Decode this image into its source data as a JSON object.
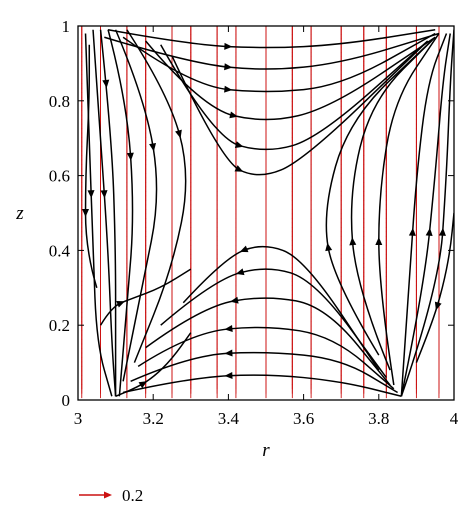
{
  "chart_data": {
    "type": "vector-field-streamlines",
    "title": "",
    "xlabel": "r",
    "ylabel": "z",
    "xlim": [
      3,
      4
    ],
    "ylim": [
      0,
      1
    ],
    "x_ticks": [
      "3",
      "3.2",
      "3.4",
      "3.6",
      "3.8",
      "4"
    ],
    "x_tick_values": [
      3,
      3.2,
      3.4,
      3.6,
      3.8,
      4
    ],
    "y_ticks": [
      "0",
      "0.2",
      "0.4",
      "0.6",
      "0.8",
      "1"
    ],
    "y_tick_values": [
      0,
      0.2,
      0.4,
      0.6,
      0.8,
      1
    ],
    "grid": false,
    "legend": {
      "placement": "bottom-left",
      "reference_vector_label": "0.2",
      "reference_vector_magnitude": 0.2
    },
    "colors": {
      "vectors": "#cc1111",
      "streamlines": "#000000"
    },
    "vector_columns_r": [
      3.01,
      3.06,
      3.13,
      3.18,
      3.25,
      3.3,
      3.37,
      3.42,
      3.5,
      3.57,
      3.62,
      3.7,
      3.76,
      3.82,
      3.9,
      3.96
    ],
    "stagnation_points": [
      {
        "r": 3.1,
        "z": 0.0
      },
      {
        "r": 3.86,
        "z": 0.0
      },
      {
        "r": 3.0,
        "z": 1.0
      },
      {
        "r": 4.0,
        "z": 1.0
      },
      {
        "r": 3.48,
        "z": 0.5
      }
    ],
    "streamlines": [
      {
        "points": [
          [
            3.02,
            0.98
          ],
          [
            3.03,
            0.7
          ],
          [
            3.04,
            0.4
          ],
          [
            3.05,
            0.15
          ],
          [
            3.09,
            0.01
          ]
        ],
        "arrow_at": 2,
        "reverse_arrow": false
      },
      {
        "points": [
          [
            3.04,
            0.99
          ],
          [
            3.06,
            0.7
          ],
          [
            3.08,
            0.4
          ],
          [
            3.09,
            0.15
          ],
          [
            3.1,
            0.01
          ]
        ],
        "arrow_at": 2,
        "reverse_arrow": false
      },
      {
        "points": [
          [
            3.06,
            0.99
          ],
          [
            3.09,
            0.7
          ],
          [
            3.1,
            0.4
          ],
          [
            3.1,
            0.15
          ],
          [
            3.1,
            0.01
          ]
        ],
        "arrow_at": 1,
        "reverse_arrow": false
      },
      {
        "points": [
          [
            3.08,
            0.99
          ],
          [
            3.13,
            0.8
          ],
          [
            3.15,
            0.5
          ],
          [
            3.13,
            0.25
          ],
          [
            3.11,
            0.01
          ]
        ],
        "arrow_at": 2,
        "reverse_arrow": false
      },
      {
        "points": [
          [
            3.1,
            0.99
          ],
          [
            3.18,
            0.8
          ],
          [
            3.22,
            0.55
          ],
          [
            3.17,
            0.3
          ],
          [
            3.12,
            0.05
          ]
        ],
        "arrow_at": 2,
        "reverse_arrow": false
      },
      {
        "points": [
          [
            3.13,
            0.99
          ],
          [
            3.24,
            0.82
          ],
          [
            3.3,
            0.6
          ],
          [
            3.25,
            0.35
          ],
          [
            3.15,
            0.1
          ]
        ],
        "arrow_at": 2,
        "reverse_arrow": false
      },
      {
        "points": [
          [
            3.06,
            0.2
          ],
          [
            3.09,
            0.25
          ],
          [
            3.14,
            0.27
          ],
          [
            3.22,
            0.3
          ],
          [
            3.3,
            0.35
          ]
        ],
        "arrow_at": 2,
        "reverse_arrow": false
      },
      {
        "points": [
          [
            3.1,
            0.01
          ],
          [
            3.15,
            0.03
          ],
          [
            3.2,
            0.06
          ],
          [
            3.25,
            0.11
          ],
          [
            3.3,
            0.18
          ]
        ],
        "arrow_at": 2,
        "reverse_arrow": false
      },
      {
        "points": [
          [
            3.05,
            0.3
          ],
          [
            3.02,
            0.4
          ],
          [
            3.02,
            0.6
          ],
          [
            3.03,
            0.8
          ],
          [
            3.03,
            0.95
          ]
        ],
        "arrow_at": 2,
        "reverse_arrow": true
      },
      {
        "points": [
          [
            3.08,
            0.99
          ],
          [
            3.3,
            0.95
          ],
          [
            3.5,
            0.94
          ],
          [
            3.7,
            0.95
          ],
          [
            3.95,
            0.99
          ]
        ],
        "arrow_at": 2,
        "reverse_arrow": false
      },
      {
        "points": [
          [
            3.07,
            0.97
          ],
          [
            3.3,
            0.9
          ],
          [
            3.5,
            0.88
          ],
          [
            3.7,
            0.9
          ],
          [
            3.96,
            0.98
          ]
        ],
        "arrow_at": 2,
        "reverse_arrow": false
      },
      {
        "points": [
          [
            3.12,
            0.97
          ],
          [
            3.3,
            0.84
          ],
          [
            3.5,
            0.82
          ],
          [
            3.7,
            0.84
          ],
          [
            3.95,
            0.98
          ]
        ],
        "arrow_at": 2,
        "reverse_arrow": false
      },
      {
        "points": [
          [
            3.18,
            0.96
          ],
          [
            3.33,
            0.78
          ],
          [
            3.5,
            0.74
          ],
          [
            3.67,
            0.78
          ],
          [
            3.95,
            0.97
          ]
        ],
        "arrow_at": 2,
        "reverse_arrow": false
      },
      {
        "points": [
          [
            3.22,
            0.95
          ],
          [
            3.36,
            0.7
          ],
          [
            3.5,
            0.66
          ],
          [
            3.64,
            0.7
          ],
          [
            3.93,
            0.96
          ]
        ],
        "arrow_at": 2,
        "reverse_arrow": false
      },
      {
        "points": [
          [
            3.25,
            0.92
          ],
          [
            3.38,
            0.64
          ],
          [
            3.48,
            0.59
          ],
          [
            3.6,
            0.64
          ],
          [
            3.92,
            0.95
          ]
        ],
        "arrow_at": 2,
        "reverse_arrow": false
      },
      {
        "points": [
          [
            3.12,
            0.02
          ],
          [
            3.3,
            0.06
          ],
          [
            3.5,
            0.07
          ],
          [
            3.7,
            0.05
          ],
          [
            3.86,
            0.01
          ]
        ],
        "arrow_at": 2,
        "reverse_arrow": true
      },
      {
        "points": [
          [
            3.14,
            0.05
          ],
          [
            3.3,
            0.12
          ],
          [
            3.5,
            0.13
          ],
          [
            3.7,
            0.11
          ],
          [
            3.85,
            0.02
          ]
        ],
        "arrow_at": 2,
        "reverse_arrow": true
      },
      {
        "points": [
          [
            3.16,
            0.09
          ],
          [
            3.3,
            0.18
          ],
          [
            3.5,
            0.2
          ],
          [
            3.68,
            0.17
          ],
          [
            3.84,
            0.03
          ]
        ],
        "arrow_at": 2,
        "reverse_arrow": true
      },
      {
        "points": [
          [
            3.18,
            0.14
          ],
          [
            3.33,
            0.25
          ],
          [
            3.5,
            0.28
          ],
          [
            3.66,
            0.25
          ],
          [
            3.83,
            0.04
          ]
        ],
        "arrow_at": 2,
        "reverse_arrow": true
      },
      {
        "points": [
          [
            3.22,
            0.2
          ],
          [
            3.36,
            0.32
          ],
          [
            3.5,
            0.36
          ],
          [
            3.63,
            0.32
          ],
          [
            3.82,
            0.06
          ]
        ],
        "arrow_at": 2,
        "reverse_arrow": true
      },
      {
        "points": [
          [
            3.28,
            0.26
          ],
          [
            3.39,
            0.38
          ],
          [
            3.49,
            0.42
          ],
          [
            3.6,
            0.38
          ],
          [
            3.8,
            0.08
          ]
        ],
        "arrow_at": 2,
        "reverse_arrow": true
      },
      {
        "points": [
          [
            3.86,
            0.01
          ],
          [
            3.88,
            0.3
          ],
          [
            3.9,
            0.6
          ],
          [
            3.93,
            0.85
          ],
          [
            3.98,
            0.98
          ]
        ],
        "arrow_at": 2,
        "reverse_arrow": false
      },
      {
        "points": [
          [
            3.86,
            0.01
          ],
          [
            3.92,
            0.3
          ],
          [
            3.95,
            0.6
          ],
          [
            3.97,
            0.85
          ],
          [
            3.99,
            0.98
          ]
        ],
        "arrow_at": 2,
        "reverse_arrow": false
      },
      {
        "points": [
          [
            3.86,
            0.01
          ],
          [
            3.96,
            0.3
          ],
          [
            3.98,
            0.6
          ],
          [
            3.99,
            0.85
          ],
          [
            4.0,
            0.99
          ]
        ],
        "arrow_at": 2,
        "reverse_arrow": false
      },
      {
        "points": [
          [
            3.84,
            0.04
          ],
          [
            3.8,
            0.3
          ],
          [
            3.8,
            0.55
          ],
          [
            3.84,
            0.8
          ],
          [
            3.96,
            0.98
          ]
        ],
        "arrow_at": 2,
        "reverse_arrow": false
      },
      {
        "points": [
          [
            3.83,
            0.08
          ],
          [
            3.74,
            0.3
          ],
          [
            3.72,
            0.55
          ],
          [
            3.78,
            0.8
          ],
          [
            3.95,
            0.97
          ]
        ],
        "arrow_at": 2,
        "reverse_arrow": false
      },
      {
        "points": [
          [
            3.8,
            0.12
          ],
          [
            3.68,
            0.32
          ],
          [
            3.65,
            0.5
          ],
          [
            3.72,
            0.75
          ],
          [
            3.94,
            0.96
          ]
        ],
        "arrow_at": 2,
        "reverse_arrow": false
      },
      {
        "points": [
          [
            3.9,
            0.1
          ],
          [
            3.94,
            0.2
          ],
          [
            3.97,
            0.3
          ],
          [
            3.99,
            0.4
          ],
          [
            4.0,
            0.5
          ]
        ],
        "arrow_at": 2,
        "reverse_arrow": true
      }
    ]
  }
}
